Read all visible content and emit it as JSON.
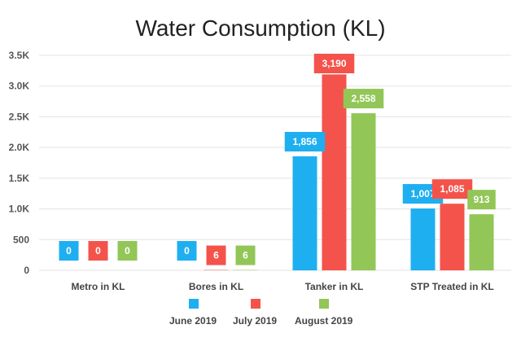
{
  "chart_data": {
    "type": "bar",
    "title": "Water Consumption (KL)",
    "categories": [
      "Metro in KL",
      "Bores in KL",
      "Tanker in KL",
      "STP Treated in KL"
    ],
    "series": [
      {
        "name": "June 2019",
        "color": "#1eaff0",
        "values": [
          0,
          0,
          1856,
          1007
        ]
      },
      {
        "name": "July 2019",
        "color": "#f4534b",
        "values": [
          0,
          6,
          3190,
          1085
        ]
      },
      {
        "name": "August 2019",
        "color": "#92c657",
        "values": [
          0,
          6,
          2558,
          913
        ]
      }
    ],
    "data_labels": [
      [
        "0",
        "0",
        "1,856",
        "1,007"
      ],
      [
        "0",
        "6",
        "3,190",
        "1,085"
      ],
      [
        "0",
        "6",
        "2,558",
        "913"
      ]
    ],
    "ylim": [
      0,
      3500
    ],
    "yticks": [
      0,
      500,
      1000,
      1500,
      2000,
      2500,
      3000,
      3500
    ],
    "ytick_labels": [
      "0",
      "500",
      "1.0K",
      "1.5K",
      "2.0K",
      "2.5K",
      "3.0K",
      "3.5K"
    ],
    "xlabel": "",
    "ylabel": "",
    "grid": true,
    "legend_position": "bottom"
  }
}
